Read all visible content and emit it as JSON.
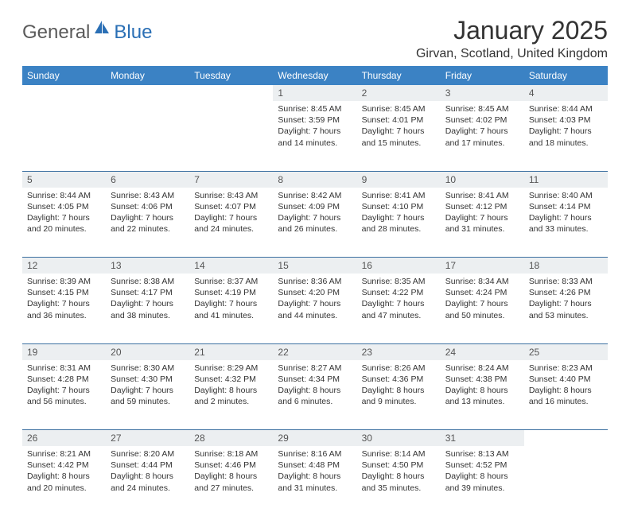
{
  "brand": {
    "part1": "General",
    "part2": "Blue"
  },
  "title": "January 2025",
  "location": "Girvan, Scotland, United Kingdom",
  "colors": {
    "header_bg": "#3b82c4",
    "header_text": "#ffffff",
    "daynum_bg": "#eceff1",
    "daynum_text": "#555555",
    "body_text": "#333333",
    "week_divider": "#3b6fa0",
    "brand_gray": "#5a5a5a",
    "brand_blue": "#2a6fb5"
  },
  "day_headers": [
    "Sunday",
    "Monday",
    "Tuesday",
    "Wednesday",
    "Thursday",
    "Friday",
    "Saturday"
  ],
  "weeks": [
    [
      {
        "n": "",
        "sunrise": "",
        "sunset": "",
        "daylight": ""
      },
      {
        "n": "",
        "sunrise": "",
        "sunset": "",
        "daylight": ""
      },
      {
        "n": "",
        "sunrise": "",
        "sunset": "",
        "daylight": ""
      },
      {
        "n": "1",
        "sunrise": "Sunrise: 8:45 AM",
        "sunset": "Sunset: 3:59 PM",
        "daylight": "Daylight: 7 hours and 14 minutes."
      },
      {
        "n": "2",
        "sunrise": "Sunrise: 8:45 AM",
        "sunset": "Sunset: 4:01 PM",
        "daylight": "Daylight: 7 hours and 15 minutes."
      },
      {
        "n": "3",
        "sunrise": "Sunrise: 8:45 AM",
        "sunset": "Sunset: 4:02 PM",
        "daylight": "Daylight: 7 hours and 17 minutes."
      },
      {
        "n": "4",
        "sunrise": "Sunrise: 8:44 AM",
        "sunset": "Sunset: 4:03 PM",
        "daylight": "Daylight: 7 hours and 18 minutes."
      }
    ],
    [
      {
        "n": "5",
        "sunrise": "Sunrise: 8:44 AM",
        "sunset": "Sunset: 4:05 PM",
        "daylight": "Daylight: 7 hours and 20 minutes."
      },
      {
        "n": "6",
        "sunrise": "Sunrise: 8:43 AM",
        "sunset": "Sunset: 4:06 PM",
        "daylight": "Daylight: 7 hours and 22 minutes."
      },
      {
        "n": "7",
        "sunrise": "Sunrise: 8:43 AM",
        "sunset": "Sunset: 4:07 PM",
        "daylight": "Daylight: 7 hours and 24 minutes."
      },
      {
        "n": "8",
        "sunrise": "Sunrise: 8:42 AM",
        "sunset": "Sunset: 4:09 PM",
        "daylight": "Daylight: 7 hours and 26 minutes."
      },
      {
        "n": "9",
        "sunrise": "Sunrise: 8:41 AM",
        "sunset": "Sunset: 4:10 PM",
        "daylight": "Daylight: 7 hours and 28 minutes."
      },
      {
        "n": "10",
        "sunrise": "Sunrise: 8:41 AM",
        "sunset": "Sunset: 4:12 PM",
        "daylight": "Daylight: 7 hours and 31 minutes."
      },
      {
        "n": "11",
        "sunrise": "Sunrise: 8:40 AM",
        "sunset": "Sunset: 4:14 PM",
        "daylight": "Daylight: 7 hours and 33 minutes."
      }
    ],
    [
      {
        "n": "12",
        "sunrise": "Sunrise: 8:39 AM",
        "sunset": "Sunset: 4:15 PM",
        "daylight": "Daylight: 7 hours and 36 minutes."
      },
      {
        "n": "13",
        "sunrise": "Sunrise: 8:38 AM",
        "sunset": "Sunset: 4:17 PM",
        "daylight": "Daylight: 7 hours and 38 minutes."
      },
      {
        "n": "14",
        "sunrise": "Sunrise: 8:37 AM",
        "sunset": "Sunset: 4:19 PM",
        "daylight": "Daylight: 7 hours and 41 minutes."
      },
      {
        "n": "15",
        "sunrise": "Sunrise: 8:36 AM",
        "sunset": "Sunset: 4:20 PM",
        "daylight": "Daylight: 7 hours and 44 minutes."
      },
      {
        "n": "16",
        "sunrise": "Sunrise: 8:35 AM",
        "sunset": "Sunset: 4:22 PM",
        "daylight": "Daylight: 7 hours and 47 minutes."
      },
      {
        "n": "17",
        "sunrise": "Sunrise: 8:34 AM",
        "sunset": "Sunset: 4:24 PM",
        "daylight": "Daylight: 7 hours and 50 minutes."
      },
      {
        "n": "18",
        "sunrise": "Sunrise: 8:33 AM",
        "sunset": "Sunset: 4:26 PM",
        "daylight": "Daylight: 7 hours and 53 minutes."
      }
    ],
    [
      {
        "n": "19",
        "sunrise": "Sunrise: 8:31 AM",
        "sunset": "Sunset: 4:28 PM",
        "daylight": "Daylight: 7 hours and 56 minutes."
      },
      {
        "n": "20",
        "sunrise": "Sunrise: 8:30 AM",
        "sunset": "Sunset: 4:30 PM",
        "daylight": "Daylight: 7 hours and 59 minutes."
      },
      {
        "n": "21",
        "sunrise": "Sunrise: 8:29 AM",
        "sunset": "Sunset: 4:32 PM",
        "daylight": "Daylight: 8 hours and 2 minutes."
      },
      {
        "n": "22",
        "sunrise": "Sunrise: 8:27 AM",
        "sunset": "Sunset: 4:34 PM",
        "daylight": "Daylight: 8 hours and 6 minutes."
      },
      {
        "n": "23",
        "sunrise": "Sunrise: 8:26 AM",
        "sunset": "Sunset: 4:36 PM",
        "daylight": "Daylight: 8 hours and 9 minutes."
      },
      {
        "n": "24",
        "sunrise": "Sunrise: 8:24 AM",
        "sunset": "Sunset: 4:38 PM",
        "daylight": "Daylight: 8 hours and 13 minutes."
      },
      {
        "n": "25",
        "sunrise": "Sunrise: 8:23 AM",
        "sunset": "Sunset: 4:40 PM",
        "daylight": "Daylight: 8 hours and 16 minutes."
      }
    ],
    [
      {
        "n": "26",
        "sunrise": "Sunrise: 8:21 AM",
        "sunset": "Sunset: 4:42 PM",
        "daylight": "Daylight: 8 hours and 20 minutes."
      },
      {
        "n": "27",
        "sunrise": "Sunrise: 8:20 AM",
        "sunset": "Sunset: 4:44 PM",
        "daylight": "Daylight: 8 hours and 24 minutes."
      },
      {
        "n": "28",
        "sunrise": "Sunrise: 8:18 AM",
        "sunset": "Sunset: 4:46 PM",
        "daylight": "Daylight: 8 hours and 27 minutes."
      },
      {
        "n": "29",
        "sunrise": "Sunrise: 8:16 AM",
        "sunset": "Sunset: 4:48 PM",
        "daylight": "Daylight: 8 hours and 31 minutes."
      },
      {
        "n": "30",
        "sunrise": "Sunrise: 8:14 AM",
        "sunset": "Sunset: 4:50 PM",
        "daylight": "Daylight: 8 hours and 35 minutes."
      },
      {
        "n": "31",
        "sunrise": "Sunrise: 8:13 AM",
        "sunset": "Sunset: 4:52 PM",
        "daylight": "Daylight: 8 hours and 39 minutes."
      },
      {
        "n": "",
        "sunrise": "",
        "sunset": "",
        "daylight": ""
      }
    ]
  ]
}
